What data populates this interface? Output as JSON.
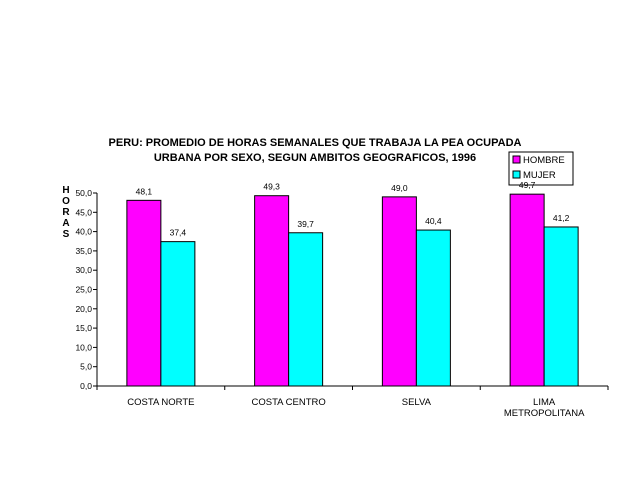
{
  "chart_data": {
    "type": "bar",
    "title_lines": [
      "PERU: PROMEDIO DE HORAS SEMANALES QUE  TRABAJA LA PEA OCUPADA",
      "URBANA POR SEXO, SEGUN AMBITOS GEOGRAFICOS, 1996"
    ],
    "ylabel": "HORAS",
    "xlabel": "",
    "categories": [
      [
        "COSTA NORTE"
      ],
      [
        "COSTA CENTRO"
      ],
      [
        "SELVA"
      ],
      [
        "LIMA",
        "METROPOLITANA"
      ]
    ],
    "series": [
      {
        "name": "HOMBRE",
        "color": "#ff00ff",
        "values": [
          48.1,
          49.3,
          49.0,
          49.7
        ],
        "labels": [
          "48,1",
          "49,3",
          "49,0",
          "49,7"
        ]
      },
      {
        "name": "MUJER",
        "color": "#00ffff",
        "values": [
          37.4,
          39.7,
          40.4,
          41.2
        ],
        "labels": [
          "37,4",
          "39,7",
          "40,4",
          "41,2"
        ]
      }
    ],
    "ylim": [
      0,
      50
    ],
    "yticks": [
      "0,0",
      "5,0",
      "10,0",
      "15,0",
      "20,0",
      "25,0",
      "30,0",
      "35,0",
      "40,0",
      "45,0",
      "50,0"
    ],
    "grid": false,
    "legend_position": "top-right"
  }
}
